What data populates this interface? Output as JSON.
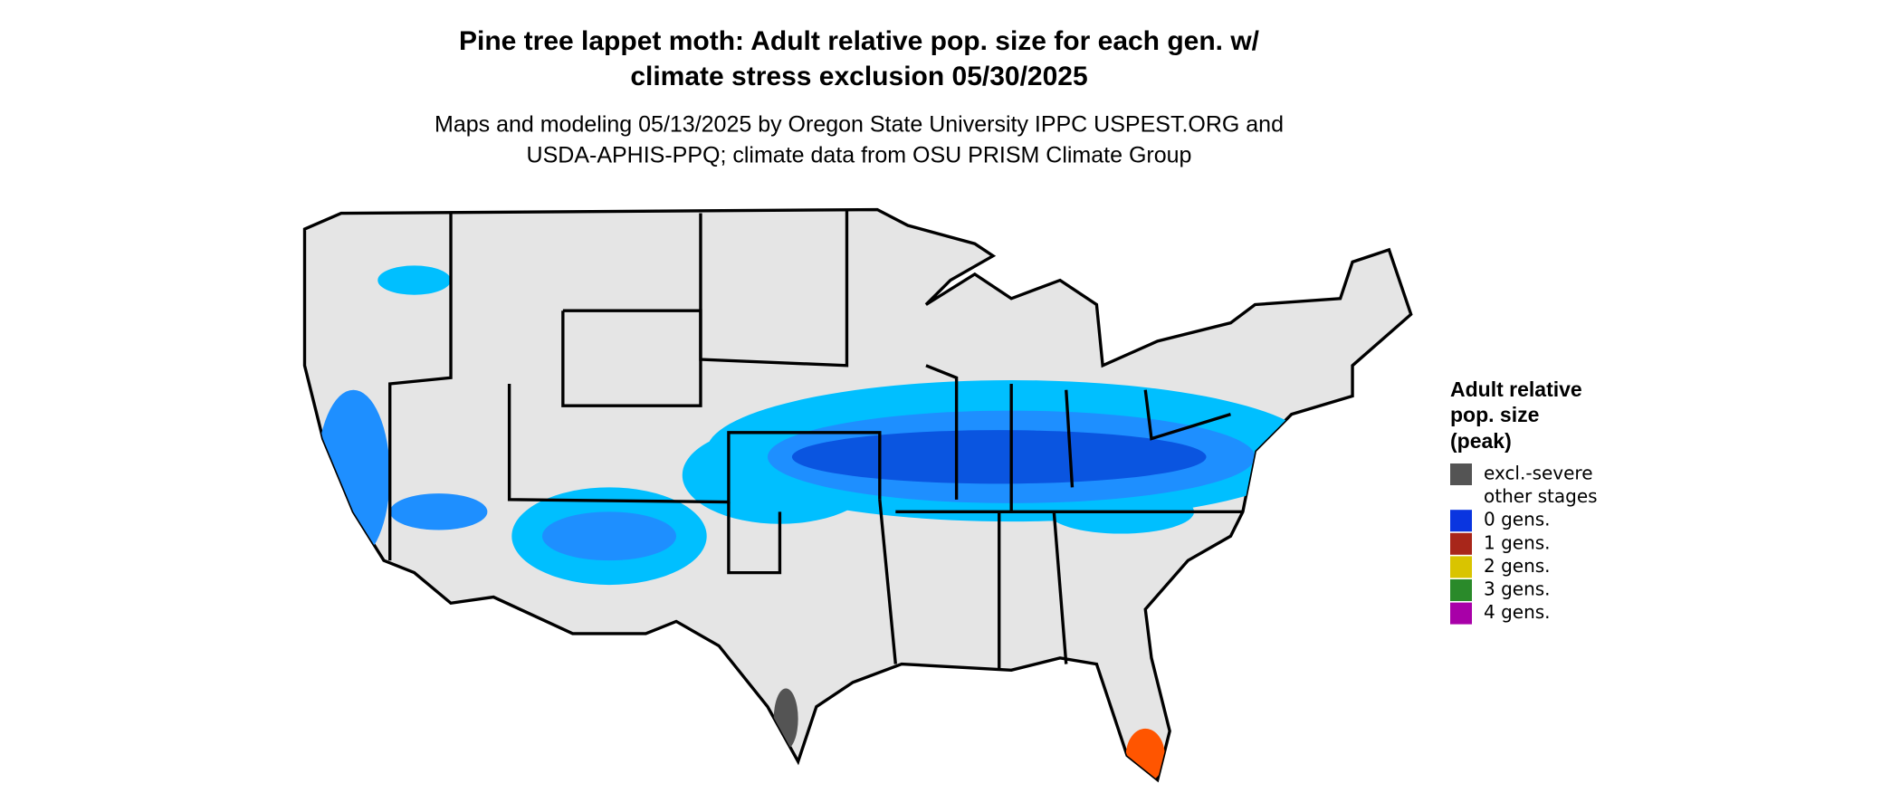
{
  "header": {
    "title": [
      "Pine tree lappet moth: Adult relative pop. size for each gen. w/",
      "climate stress exclusion 05/30/2025"
    ],
    "subtitle": [
      "Maps and modeling 05/13/2025 by Oregon State University IPPC USPEST.ORG and",
      "USDA-APHIS-PPQ; climate data from OSU PRISM Climate Group"
    ]
  },
  "legend": {
    "title": [
      "Adult relative",
      "pop. size",
      "(peak)"
    ],
    "items": [
      {
        "label": "excl.-severe",
        "color": "#545454"
      },
      {
        "label": "other stages",
        "color": "#ffffff"
      },
      {
        "label": "0 gens.",
        "color": "#0a35e0"
      },
      {
        "label": "1 gens.",
        "color": "#a8261a"
      },
      {
        "label": "2 gens.",
        "color": "#d9c400"
      },
      {
        "label": "3 gens.",
        "color": "#2a8a2a"
      },
      {
        "label": "4 gens.",
        "color": "#a800a8"
      }
    ]
  }
}
